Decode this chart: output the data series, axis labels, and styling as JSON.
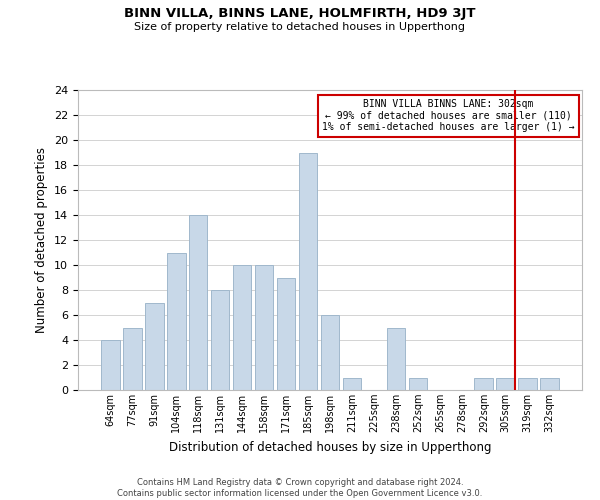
{
  "title": "BINN VILLA, BINNS LANE, HOLMFIRTH, HD9 3JT",
  "subtitle": "Size of property relative to detached houses in Upperthong",
  "xlabel": "Distribution of detached houses by size in Upperthong",
  "ylabel": "Number of detached properties",
  "footer_line1": "Contains HM Land Registry data © Crown copyright and database right 2024.",
  "footer_line2": "Contains public sector information licensed under the Open Government Licence v3.0.",
  "bar_labels": [
    "64sqm",
    "77sqm",
    "91sqm",
    "104sqm",
    "118sqm",
    "131sqm",
    "144sqm",
    "158sqm",
    "171sqm",
    "185sqm",
    "198sqm",
    "211sqm",
    "225sqm",
    "238sqm",
    "252sqm",
    "265sqm",
    "278sqm",
    "292sqm",
    "305sqm",
    "319sqm",
    "332sqm"
  ],
  "bar_values": [
    4,
    5,
    7,
    11,
    14,
    8,
    10,
    10,
    9,
    19,
    6,
    1,
    0,
    5,
    1,
    0,
    0,
    1,
    1,
    1,
    1
  ],
  "bar_color": "#c8d8e8",
  "bar_edgecolor": "#a0b8cc",
  "ylim": [
    0,
    24
  ],
  "yticks": [
    0,
    2,
    4,
    6,
    8,
    10,
    12,
    14,
    16,
    18,
    20,
    22,
    24
  ],
  "marker_label_index": 18,
  "annotation_title": "BINN VILLA BINNS LANE: 302sqm",
  "annotation_line1": "← 99% of detached houses are smaller (110)",
  "annotation_line2": "1% of semi-detached houses are larger (1) →",
  "annotation_box_color": "#ffffff",
  "annotation_box_edgecolor": "#cc0000",
  "marker_line_color": "#cc0000",
  "background_color": "#ffffff",
  "grid_color": "#cccccc"
}
